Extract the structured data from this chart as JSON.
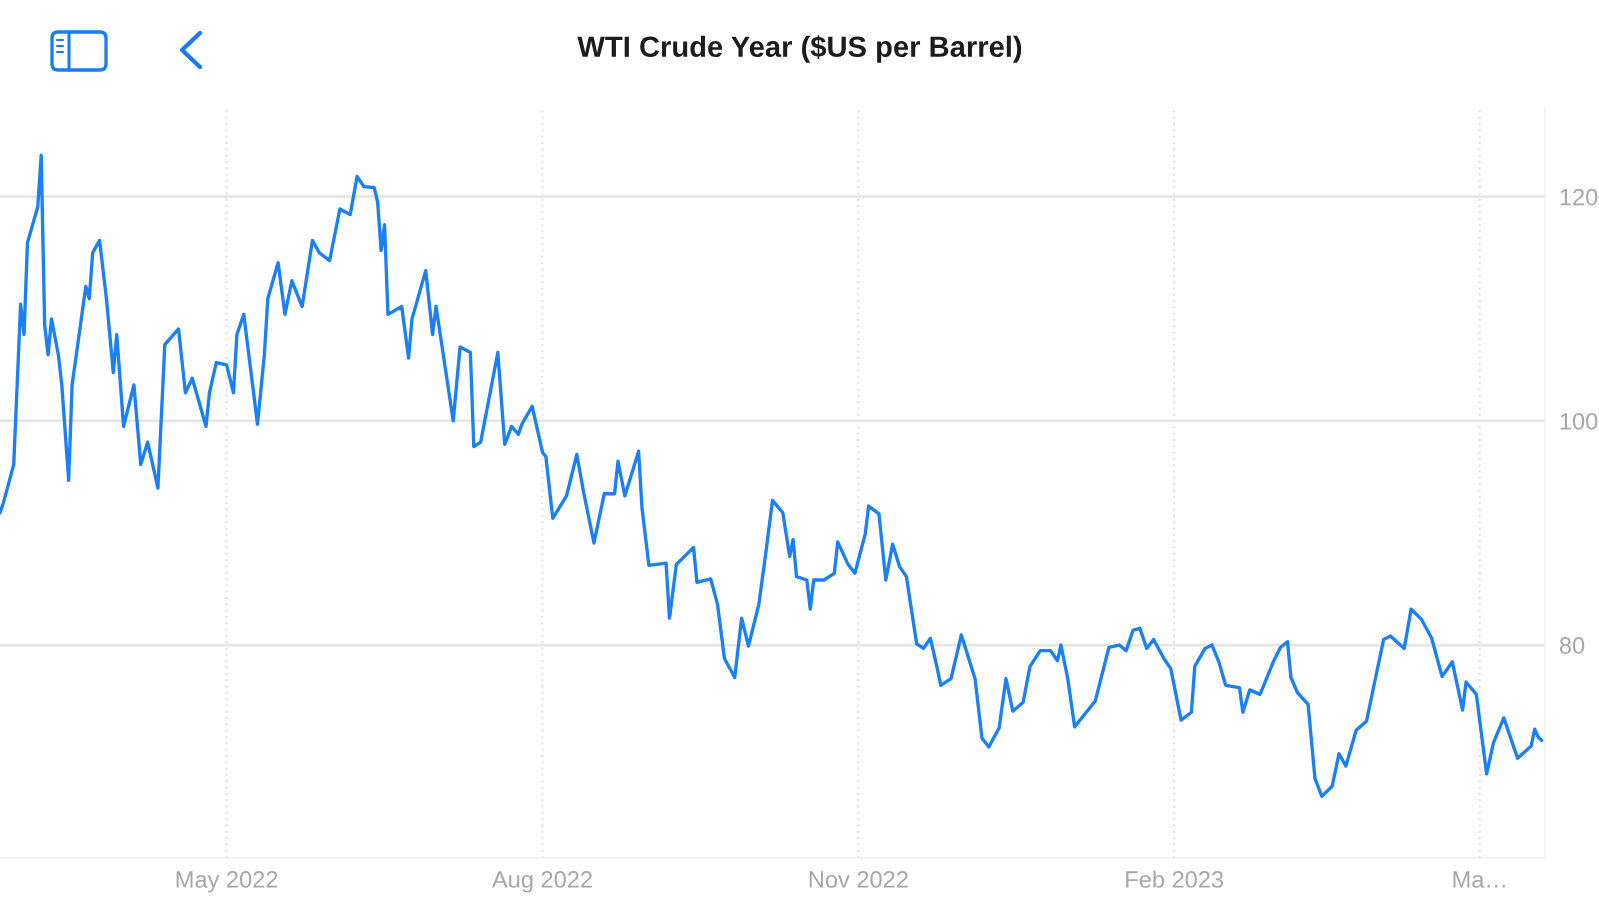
{
  "chart_data": {
    "type": "line",
    "title": "WTI Crude Year ($US per Barrel)",
    "x": [
      "2022-02-24",
      "2022-02-25",
      "2022-02-28",
      "2022-03-02",
      "2022-03-03",
      "2022-03-04",
      "2022-03-07",
      "2022-03-08",
      "2022-03-09",
      "2022-03-10",
      "2022-03-11",
      "2022-03-13",
      "2022-03-14",
      "2022-03-16",
      "2022-03-17",
      "2022-03-21",
      "2022-03-22",
      "2022-03-23",
      "2022-03-25",
      "2022-03-27",
      "2022-03-29",
      "2022-03-30",
      "2022-04-01",
      "2022-04-04",
      "2022-04-06",
      "2022-04-08",
      "2022-04-11",
      "2022-04-13",
      "2022-04-17",
      "2022-04-19",
      "2022-04-21",
      "2022-04-25",
      "2022-04-26",
      "2022-04-28",
      "2022-05-01",
      "2022-05-03",
      "2022-05-04",
      "2022-05-06",
      "2022-05-10",
      "2022-05-12",
      "2022-05-13",
      "2022-05-16",
      "2022-05-18",
      "2022-05-20",
      "2022-05-23",
      "2022-05-26",
      "2022-05-28",
      "2022-05-31",
      "2022-06-03",
      "2022-06-06",
      "2022-06-08",
      "2022-06-10",
      "2022-06-13",
      "2022-06-14",
      "2022-06-15",
      "2022-06-16",
      "2022-06-17",
      "2022-06-21",
      "2022-06-23",
      "2022-06-24",
      "2022-06-28",
      "2022-06-30",
      "2022-07-01",
      "2022-07-06",
      "2022-07-08",
      "2022-07-11",
      "2022-07-12",
      "2022-07-14",
      "2022-07-19",
      "2022-07-21",
      "2022-07-23",
      "2022-07-25",
      "2022-07-26",
      "2022-07-29",
      "2022-08-01",
      "2022-08-02",
      "2022-08-04",
      "2022-08-08",
      "2022-08-11",
      "2022-08-13",
      "2022-08-16",
      "2022-08-19",
      "2022-08-22",
      "2022-08-23",
      "2022-08-25",
      "2022-08-29",
      "2022-08-30",
      "2022-09-01",
      "2022-09-06",
      "2022-09-07",
      "2022-09-09",
      "2022-09-14",
      "2022-09-15",
      "2022-09-19",
      "2022-09-21",
      "2022-09-23",
      "2022-09-26",
      "2022-09-28",
      "2022-09-30",
      "2022-10-03",
      "2022-10-05",
      "2022-10-07",
      "2022-10-10",
      "2022-10-12",
      "2022-10-13",
      "2022-10-14",
      "2022-10-17",
      "2022-10-18",
      "2022-10-19",
      "2022-10-22",
      "2022-10-25",
      "2022-10-26",
      "2022-10-29",
      "2022-10-31",
      "2022-11-03",
      "2022-11-04",
      "2022-11-07",
      "2022-11-09",
      "2022-11-11",
      "2022-11-13",
      "2022-11-15",
      "2022-11-18",
      "2022-11-20",
      "2022-11-22",
      "2022-11-24",
      "2022-11-25",
      "2022-11-28",
      "2022-12-01",
      "2022-12-05",
      "2022-12-07",
      "2022-12-09",
      "2022-12-12",
      "2022-12-14",
      "2022-12-16",
      "2022-12-19",
      "2022-12-21",
      "2022-12-24",
      "2022-12-27",
      "2022-12-29",
      "2022-12-30",
      "2023-01-01",
      "2023-01-03",
      "2023-01-09",
      "2023-01-13",
      "2023-01-16",
      "2023-01-18",
      "2023-01-20",
      "2023-01-22",
      "2023-01-24",
      "2023-01-26",
      "2023-01-29",
      "2023-01-31",
      "2023-02-03",
      "2023-02-06",
      "2023-02-07",
      "2023-02-10",
      "2023-02-12",
      "2023-02-14",
      "2023-02-16",
      "2023-02-20",
      "2023-02-21",
      "2023-02-23",
      "2023-02-26",
      "2023-03-02",
      "2023-03-04",
      "2023-03-06",
      "2023-03-07",
      "2023-03-09",
      "2023-03-12",
      "2023-03-14",
      "2023-03-16",
      "2023-03-19",
      "2023-03-21",
      "2023-03-23",
      "2023-03-26",
      "2023-03-29",
      "2023-04-03",
      "2023-04-05",
      "2023-04-09",
      "2023-04-11",
      "2023-04-14",
      "2023-04-17",
      "2023-04-20",
      "2023-04-23",
      "2023-04-26",
      "2023-04-27",
      "2023-04-30",
      "2023-05-03",
      "2023-05-05",
      "2023-05-08",
      "2023-05-12",
      "2023-05-16",
      "2023-05-17",
      "2023-05-18",
      "2023-05-19"
    ],
    "series": [
      {
        "color": "#1b7ff5",
        "values": [
          91.8,
          92.7,
          96.1,
          110.4,
          107.7,
          115.9,
          119.1,
          123.7,
          108.6,
          105.9,
          109.1,
          105.9,
          103.2,
          94.7,
          103.2,
          112.0,
          110.9,
          115.0,
          116.1,
          110.9,
          104.3,
          107.7,
          99.5,
          103.2,
          96.1,
          98.1,
          94.0,
          106.8,
          108.2,
          102.5,
          103.8,
          99.5,
          102.5,
          105.2,
          105.0,
          102.5,
          107.7,
          109.5,
          99.7,
          105.9,
          110.9,
          114.1,
          109.5,
          112.5,
          110.2,
          116.1,
          115.0,
          114.3,
          118.9,
          118.4,
          121.8,
          120.9,
          120.8,
          119.5,
          115.2,
          117.5,
          109.5,
          110.2,
          105.6,
          109.1,
          113.4,
          107.7,
          110.2,
          100.0,
          106.6,
          106.1,
          97.7,
          98.1,
          106.1,
          97.9,
          99.5,
          98.8,
          99.7,
          101.3,
          97.2,
          96.8,
          91.3,
          93.3,
          97.0,
          93.6,
          89.1,
          93.5,
          93.5,
          96.4,
          93.3,
          97.3,
          92.2,
          87.1,
          87.3,
          82.4,
          87.2,
          88.7,
          85.6,
          85.9,
          83.6,
          78.8,
          77.1,
          82.4,
          79.9,
          83.6,
          88.1,
          92.9,
          91.8,
          87.9,
          89.4,
          86.1,
          85.8,
          83.2,
          85.8,
          85.8,
          86.4,
          89.2,
          87.2,
          86.4,
          89.9,
          92.4,
          91.7,
          85.8,
          89.0,
          87.0,
          86.1,
          80.1,
          79.7,
          80.6,
          77.9,
          76.4,
          77.0,
          80.9,
          77.0,
          71.7,
          70.9,
          72.6,
          77.0,
          74.1,
          74.9,
          78.1,
          79.5,
          79.5,
          78.6,
          80.0,
          77.0,
          72.7,
          75.0,
          79.8,
          80.0,
          79.5,
          81.3,
          81.5,
          79.7,
          80.5,
          78.8,
          77.9,
          73.3,
          74.0,
          78.1,
          79.7,
          80.0,
          78.5,
          76.4,
          76.2,
          74.0,
          76.0,
          75.6,
          78.6,
          79.8,
          80.3,
          77.1,
          75.7,
          74.7,
          68.1,
          66.5,
          67.4,
          70.3,
          69.2,
          72.4,
          73.2,
          80.5,
          80.8,
          79.7,
          83.2,
          82.3,
          80.6,
          77.2,
          78.5,
          74.2,
          76.7,
          75.6,
          68.5,
          71.3,
          73.5,
          69.9,
          71.0,
          72.5,
          71.8,
          71.5
        ]
      }
    ],
    "xlim": [
      "2022-02-24",
      "2023-05-20"
    ],
    "xticks": [
      {
        "value": "2022-05-01",
        "label": "May 2022"
      },
      {
        "value": "2022-08-01",
        "label": "Aug 2022"
      },
      {
        "value": "2022-11-01",
        "label": "Nov 2022"
      },
      {
        "value": "2023-02-01",
        "label": "Feb 2023"
      },
      {
        "value": "2023-05-01",
        "label": "Ma…"
      }
    ],
    "ylim": [
      61,
      128
    ],
    "yticks": [
      80,
      100,
      120
    ],
    "grid": true,
    "line_style": "solid"
  }
}
